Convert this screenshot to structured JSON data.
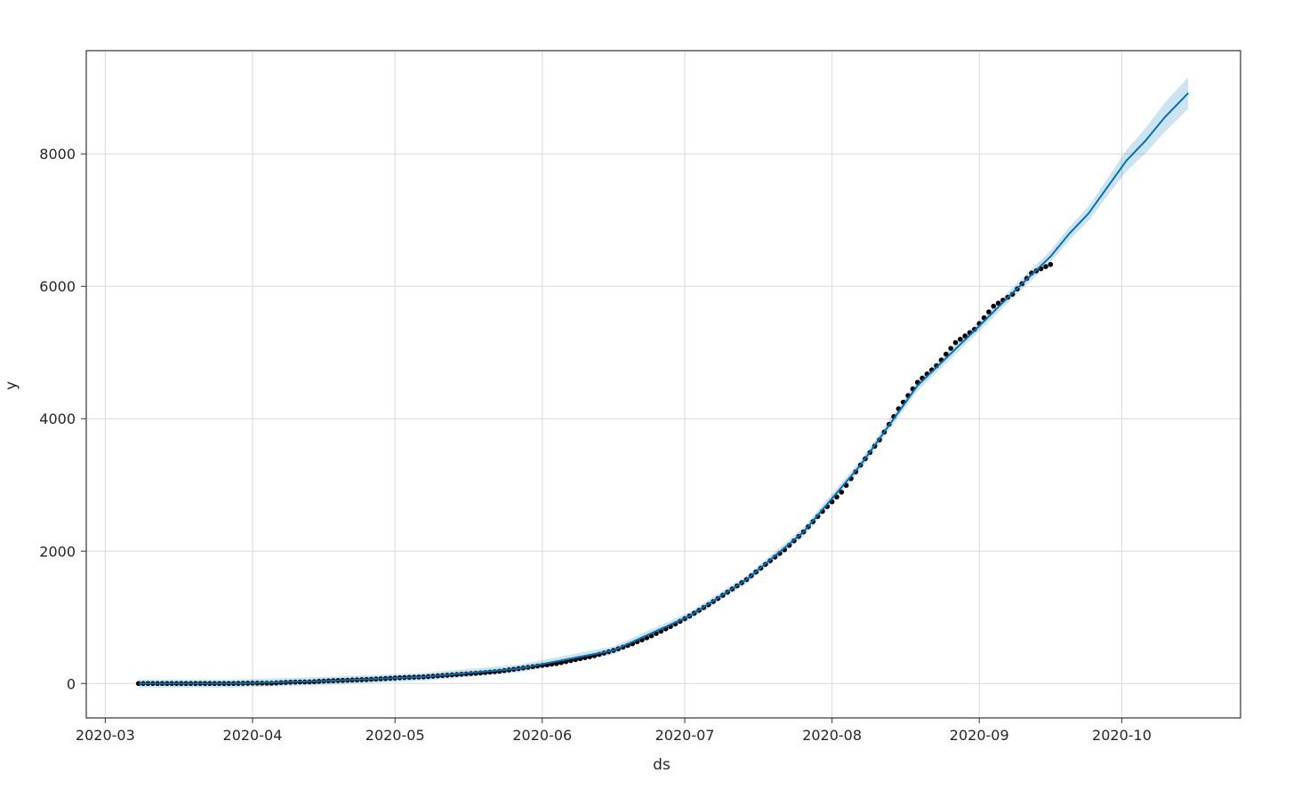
{
  "chart_data": {
    "type": "line",
    "title": "",
    "xlabel": "ds",
    "ylabel": "y",
    "xlim": [
      "2020-02-26",
      "2020-10-26"
    ],
    "ylim": [
      -520,
      9560
    ],
    "grid": true,
    "x_ticks": [
      "2020-03",
      "2020-04",
      "2020-05",
      "2020-06",
      "2020-07",
      "2020-08",
      "2020-09",
      "2020-10"
    ],
    "y_ticks": [
      0,
      2000,
      4000,
      6000,
      8000
    ],
    "colors": {
      "forecast": "#0072B2",
      "band": "#0072B2",
      "observed": "#000000",
      "grid": "#d9d9d9"
    },
    "observed": [
      [
        "2020-03-08",
        0
      ],
      [
        "2020-03-12",
        0
      ],
      [
        "2020-03-16",
        0
      ],
      [
        "2020-03-20",
        0
      ],
      [
        "2020-03-24",
        0
      ],
      [
        "2020-03-28",
        0
      ],
      [
        "2020-04-01",
        5
      ],
      [
        "2020-04-05",
        5
      ],
      [
        "2020-04-09",
        20
      ],
      [
        "2020-04-13",
        25
      ],
      [
        "2020-04-17",
        40
      ],
      [
        "2020-04-21",
        50
      ],
      [
        "2020-04-25",
        60
      ],
      [
        "2020-04-29",
        75
      ],
      [
        "2020-05-03",
        90
      ],
      [
        "2020-05-07",
        100
      ],
      [
        "2020-05-11",
        120
      ],
      [
        "2020-05-15",
        140
      ],
      [
        "2020-05-19",
        160
      ],
      [
        "2020-05-23",
        185
      ],
      [
        "2020-05-27",
        225
      ],
      [
        "2020-05-31",
        265
      ],
      [
        "2020-06-04",
        300
      ],
      [
        "2020-06-08",
        360
      ],
      [
        "2020-06-12",
        420
      ],
      [
        "2020-06-16",
        500
      ],
      [
        "2020-06-20",
        600
      ],
      [
        "2020-06-24",
        720
      ],
      [
        "2020-06-28",
        860
      ],
      [
        "2020-07-02",
        1020
      ],
      [
        "2020-07-06",
        1190
      ],
      [
        "2020-07-10",
        1380
      ],
      [
        "2020-07-14",
        1570
      ],
      [
        "2020-07-18",
        1800
      ],
      [
        "2020-07-22",
        2020
      ],
      [
        "2020-07-26",
        2290
      ],
      [
        "2020-07-30",
        2600
      ],
      [
        "2020-08-03",
        2890
      ],
      [
        "2020-08-07",
        3300
      ],
      [
        "2020-08-11",
        3680
      ],
      [
        "2020-08-15",
        4150
      ],
      [
        "2020-08-19",
        4550
      ],
      [
        "2020-08-23",
        4800
      ],
      [
        "2020-08-27",
        5150
      ],
      [
        "2020-08-31",
        5350
      ],
      [
        "2020-09-04",
        5700
      ],
      [
        "2020-09-08",
        5880
      ],
      [
        "2020-09-12",
        6200
      ],
      [
        "2020-09-16",
        6330
      ]
    ],
    "forecast": [
      [
        "2020-03-08",
        0,
        -60,
        60
      ],
      [
        "2020-03-28",
        0,
        -60,
        60
      ],
      [
        "2020-04-17",
        40,
        -20,
        100
      ],
      [
        "2020-05-07",
        100,
        40,
        160
      ],
      [
        "2020-05-27",
        225,
        165,
        285
      ],
      [
        "2020-06-16",
        500,
        440,
        560
      ],
      [
        "2020-07-02",
        1020,
        960,
        1080
      ],
      [
        "2020-07-14",
        1570,
        1510,
        1630
      ],
      [
        "2020-07-26",
        2290,
        2220,
        2360
      ],
      [
        "2020-08-07",
        3300,
        3230,
        3370
      ],
      [
        "2020-08-19",
        4500,
        4420,
        4580
      ],
      [
        "2020-08-31",
        5330,
        5250,
        5410
      ],
      [
        "2020-09-08",
        5900,
        5820,
        5980
      ],
      [
        "2020-09-16",
        6450,
        6360,
        6540
      ],
      [
        "2020-09-20",
        6800,
        6700,
        6900
      ],
      [
        "2020-09-24",
        7100,
        6990,
        7210
      ],
      [
        "2020-09-28",
        7500,
        7370,
        7630
      ],
      [
        "2020-10-02",
        7900,
        7740,
        8060
      ],
      [
        "2020-10-06",
        8200,
        8010,
        8390
      ],
      [
        "2020-10-10",
        8550,
        8330,
        8770
      ],
      [
        "2020-10-15",
        8920,
        8680,
        9160
      ]
    ]
  }
}
